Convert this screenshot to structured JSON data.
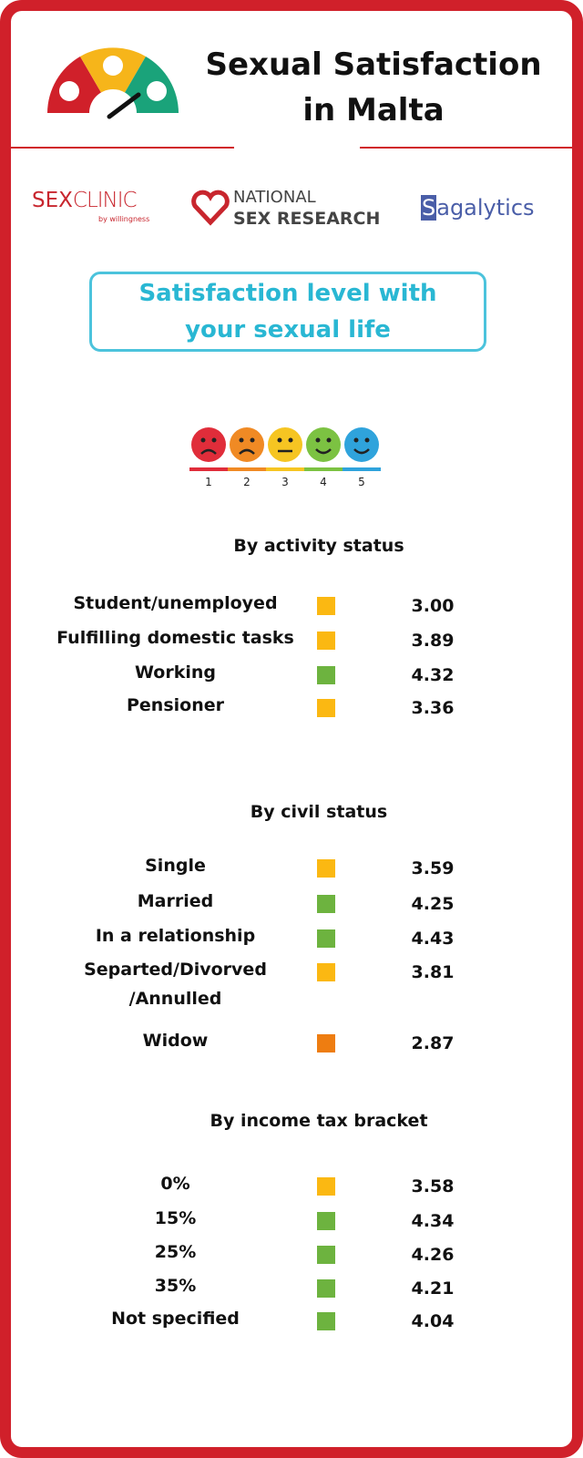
{
  "header": {
    "title": "Sexual Satisfaction\nin Malta"
  },
  "logos": {
    "sexclinic_a": "SEX",
    "sexclinic_b": "CLINIC",
    "sexclinic_by": "by willingness",
    "nsr_top": "NATIONAL",
    "nsr_bottom": "SEX RESEARCH",
    "sagalytics_s": "S",
    "sagalytics_rest": "agalytics"
  },
  "question": "Satisfaction level with your sexual life",
  "scale": {
    "labels": [
      "1",
      "2",
      "3",
      "4",
      "5"
    ],
    "colors": [
      "#e02d3a",
      "#f08a24",
      "#f6c522",
      "#7cc242",
      "#2fa3dc"
    ]
  },
  "sections": [
    {
      "heading": "By activity status",
      "rows": [
        {
          "label": "Student/unemployed",
          "color": "#fbb812",
          "value": "3.00"
        },
        {
          "label": "Fulfilling domestic tasks",
          "color": "#fbb812",
          "value": "3.89"
        },
        {
          "label": "Working",
          "color": "#6db33f",
          "value": "4.32"
        },
        {
          "label": "Pensioner",
          "color": "#fbb812",
          "value": "3.36"
        }
      ]
    },
    {
      "heading": "By civil status",
      "rows": [
        {
          "label": "Single",
          "color": "#fbb812",
          "value": "3.59"
        },
        {
          "label": "Married",
          "color": "#6db33f",
          "value": "4.25"
        },
        {
          "label": "In a relationship",
          "color": "#6db33f",
          "value": "4.43"
        },
        {
          "label": "Separted/Divorved\n/Annulled",
          "color": "#fbb812",
          "value": "3.81"
        },
        {
          "label": "Widow",
          "color": "#ee7d11",
          "value": "2.87"
        }
      ]
    },
    {
      "heading": "By income tax bracket",
      "rows": [
        {
          "label": "0%",
          "color": "#fbb812",
          "value": "3.58"
        },
        {
          "label": "15%",
          "color": "#6db33f",
          "value": "4.34"
        },
        {
          "label": "25%",
          "color": "#6db33f",
          "value": "4.26"
        },
        {
          "label": "35%",
          "color": "#6db33f",
          "value": "4.21"
        },
        {
          "label": "Not specified",
          "color": "#6db33f",
          "value": "4.04"
        }
      ]
    }
  ]
}
